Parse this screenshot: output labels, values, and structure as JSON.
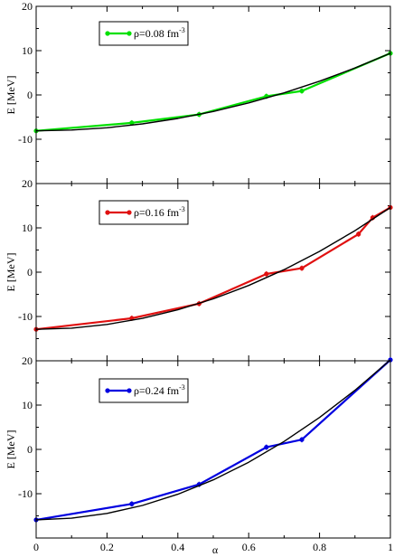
{
  "chart_data": [
    {
      "type": "line",
      "ylabel": "E [MeV]",
      "xlabel": "",
      "xlim": [
        0,
        1
      ],
      "ylim": [
        -20,
        20
      ],
      "xticks": [
        "0",
        "0.2",
        "0.4",
        "0.6",
        "0.8",
        "1"
      ],
      "yticks": [
        "-10",
        "0",
        "10",
        "20"
      ],
      "legend": {
        "text": "ρ=0.08 fm",
        "sup": "-3",
        "placement": "top-center"
      },
      "series": [
        {
          "name": "ρ=0.08 fm-3",
          "color": "#00e000",
          "x": [
            0,
            0.27,
            0.46,
            0.65,
            0.75,
            1.0
          ],
          "y": [
            -8.1,
            -6.3,
            -4.4,
            -0.3,
            0.9,
            9.4
          ]
        },
        {
          "name": "",
          "color": "#000000",
          "kind": "fit",
          "x": [
            0,
            0.1,
            0.2,
            0.3,
            0.4,
            0.5,
            0.6,
            0.7,
            0.8,
            0.9,
            1.0
          ],
          "y": [
            -8.1,
            -7.925,
            -7.4,
            -6.525,
            -5.3,
            -3.725,
            -1.8,
            0.475,
            3.1,
            6.075,
            9.4
          ]
        }
      ]
    },
    {
      "type": "line",
      "ylabel": "E [MeV]",
      "xlabel": "",
      "xlim": [
        0,
        1
      ],
      "ylim": [
        -20,
        20
      ],
      "xticks": [
        "0",
        "0.2",
        "0.4",
        "0.6",
        "0.8",
        "1"
      ],
      "yticks": [
        "-10",
        "0",
        "10",
        "20"
      ],
      "legend": {
        "text": "ρ=0.16 fm",
        "sup": "-3",
        "placement": "top-center"
      },
      "series": [
        {
          "name": "ρ=0.16 fm-3",
          "color": "#e01010",
          "x": [
            0,
            0.27,
            0.46,
            0.65,
            0.75,
            0.91,
            0.95,
            1.0
          ],
          "y": [
            -12.9,
            -10.4,
            -7.1,
            -0.4,
            0.9,
            8.6,
            12.3,
            14.6
          ]
        },
        {
          "name": "",
          "color": "#000000",
          "kind": "fit",
          "x": [
            0,
            0.1,
            0.2,
            0.3,
            0.4,
            0.5,
            0.6,
            0.7,
            0.8,
            0.9,
            1.0
          ],
          "y": [
            -12.9,
            -12.625,
            -11.8,
            -10.425,
            -8.5,
            -6.025,
            -3.0,
            0.575,
            4.7,
            9.375,
            14.6
          ]
        }
      ]
    },
    {
      "type": "line",
      "ylabel": "E [MeV]",
      "xlabel": "α",
      "xlim": [
        0,
        1
      ],
      "ylim": [
        -20,
        20
      ],
      "xticks": [
        "0",
        "0.2",
        "0.4",
        "0.6",
        "0.8",
        "1"
      ],
      "yticks": [
        "-10",
        "0",
        "10",
        "20"
      ],
      "legend": {
        "text": "ρ=0.24 fm",
        "sup": "-3",
        "placement": "top-center"
      },
      "series": [
        {
          "name": "ρ=0.24 fm-3",
          "color": "#0000e0",
          "x": [
            0,
            0.27,
            0.46,
            0.65,
            0.75,
            1.0
          ],
          "y": [
            -15.9,
            -12.3,
            -7.9,
            0.5,
            2.2,
            20.2
          ]
        },
        {
          "name": "",
          "color": "#000000",
          "kind": "fit",
          "x": [
            0,
            0.1,
            0.2,
            0.3,
            0.4,
            0.5,
            0.6,
            0.7,
            0.8,
            0.9,
            1.0
          ],
          "y": [
            -15.9,
            -15.539,
            -14.456,
            -12.651,
            -10.124,
            -6.875,
            -2.904,
            1.789,
            7.204,
            13.341,
            20.2
          ]
        }
      ]
    }
  ]
}
